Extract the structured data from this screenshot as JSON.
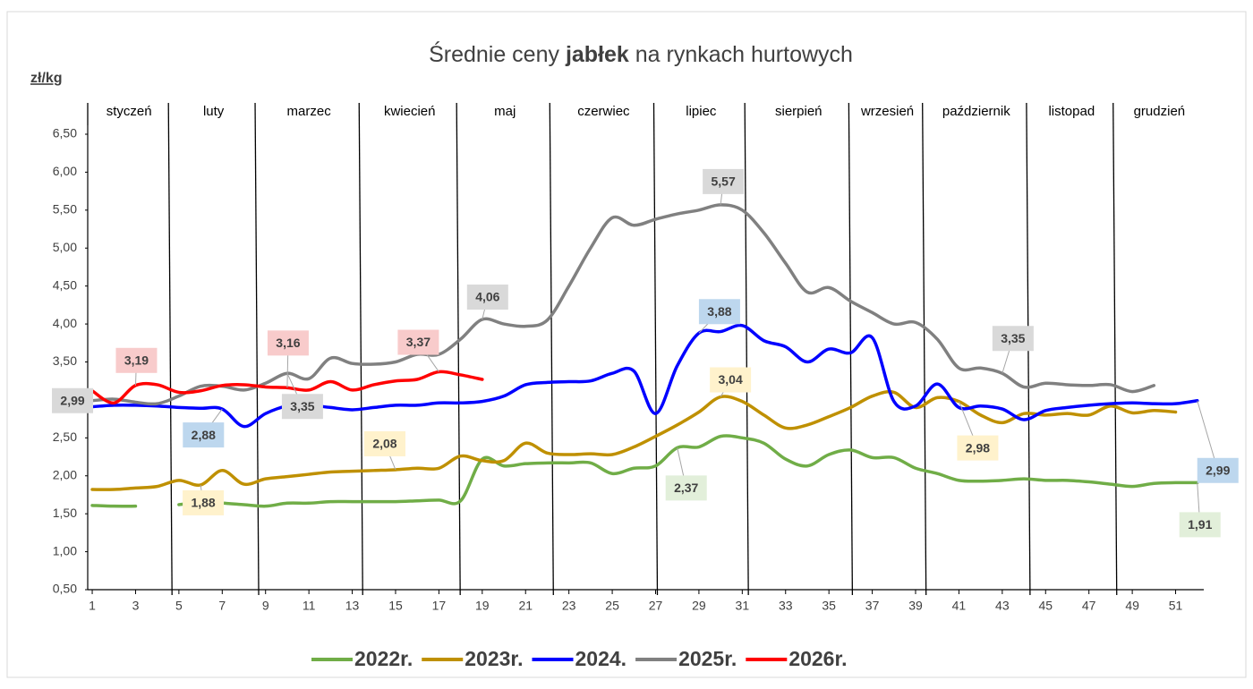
{
  "chart_data": {
    "type": "line",
    "title_parts": [
      "Średnie ceny ",
      "jabłek",
      " na rynkach hurtowych"
    ],
    "y_label": "zł/kg",
    "months": [
      "styczeń",
      "luty",
      "marzec",
      "kwiecień",
      "maj",
      "czerwiec",
      "lipiec",
      "sierpień",
      "wrzesień",
      "październik",
      "listopad",
      "grudzień"
    ],
    "month_bounds": [
      4.6,
      8.6,
      13.4,
      17.9,
      22.2,
      27.0,
      31.2,
      36.0,
      39.4,
      44.2,
      48.2
    ],
    "xlim": [
      0.8,
      52.3
    ],
    "xticks": [
      1,
      3,
      5,
      7,
      9,
      11,
      13,
      15,
      17,
      19,
      21,
      23,
      25,
      27,
      29,
      31,
      33,
      35,
      37,
      39,
      41,
      43,
      45,
      47,
      49,
      51
    ],
    "ylim": [
      0.5,
      6.5
    ],
    "yticks": [
      {
        "value": 0.5,
        "label": "0,50"
      },
      {
        "value": 1.0,
        "label": "1,00"
      },
      {
        "value": 1.5,
        "label": "1,50"
      },
      {
        "value": 2.0,
        "label": "2,00"
      },
      {
        "value": 2.5,
        "label": "2,50"
      },
      {
        "value": 3.0,
        "label": "3,00"
      },
      {
        "value": 3.5,
        "label": "3,50"
      },
      {
        "value": 4.0,
        "label": "4,00"
      },
      {
        "value": 4.5,
        "label": "4,50"
      },
      {
        "value": 5.0,
        "label": "5,00"
      },
      {
        "value": 5.5,
        "label": "5,50"
      },
      {
        "value": 6.0,
        "label": "6,00"
      },
      {
        "value": 6.5,
        "label": "6,50"
      }
    ],
    "x": [
      1,
      2,
      3,
      4,
      5,
      6,
      7,
      8,
      9,
      10,
      11,
      12,
      13,
      14,
      15,
      16,
      17,
      18,
      19,
      20,
      21,
      22,
      23,
      24,
      25,
      26,
      27,
      28,
      29,
      30,
      31,
      32,
      33,
      34,
      35,
      36,
      37,
      38,
      39,
      40,
      41,
      42,
      43,
      44,
      45,
      46,
      47,
      48,
      49,
      50,
      51,
      52
    ],
    "series": [
      {
        "name": "2022r.",
        "color": "#70ad47",
        "values": [
          1.61,
          1.6,
          1.6,
          null,
          1.62,
          1.65,
          1.64,
          1.62,
          1.6,
          1.64,
          1.64,
          1.66,
          1.66,
          1.66,
          1.66,
          1.67,
          1.68,
          1.67,
          2.22,
          2.13,
          2.16,
          2.17,
          2.17,
          2.17,
          2.03,
          2.1,
          2.13,
          2.37,
          2.38,
          2.52,
          2.5,
          2.43,
          2.22,
          2.13,
          2.28,
          2.34,
          2.24,
          2.24,
          2.1,
          2.03,
          1.94,
          1.93,
          1.94,
          1.96,
          1.94,
          1.94,
          1.92,
          1.89,
          1.86,
          1.9,
          1.91,
          1.91
        ]
      },
      {
        "name": "2023r.",
        "color": "#bf9000",
        "values": [
          1.82,
          1.82,
          1.84,
          1.86,
          1.94,
          1.88,
          2.07,
          1.89,
          1.96,
          1.99,
          2.02,
          2.05,
          2.06,
          2.07,
          2.08,
          2.1,
          2.1,
          2.26,
          2.2,
          2.2,
          2.43,
          2.3,
          2.28,
          2.29,
          2.28,
          2.38,
          2.52,
          2.67,
          2.84,
          3.04,
          2.98,
          2.8,
          2.63,
          2.67,
          2.78,
          2.9,
          3.05,
          3.1,
          2.9,
          3.03,
          2.98,
          2.8,
          2.7,
          2.82,
          2.8,
          2.82,
          2.8,
          2.92,
          2.83,
          2.86,
          2.84,
          null
        ]
      },
      {
        "name": "2024.",
        "color": "#0000ff",
        "values": [
          2.91,
          2.93,
          2.93,
          2.92,
          2.9,
          2.89,
          2.88,
          2.65,
          2.82,
          2.92,
          2.93,
          2.9,
          2.87,
          2.9,
          2.93,
          2.93,
          2.96,
          2.96,
          2.98,
          3.05,
          3.2,
          3.23,
          3.24,
          3.25,
          3.35,
          3.38,
          2.82,
          3.45,
          3.88,
          3.9,
          3.98,
          3.78,
          3.7,
          3.5,
          3.67,
          3.62,
          3.82,
          2.98,
          2.92,
          3.21,
          2.9,
          2.92,
          2.88,
          2.74,
          2.86,
          2.9,
          2.93,
          2.95,
          2.96,
          2.95,
          2.95,
          2.99
        ]
      },
      {
        "name": "2025r.",
        "color": "#808080",
        "values": [
          2.99,
          3.01,
          2.97,
          2.95,
          3.05,
          3.18,
          3.18,
          3.13,
          3.22,
          3.35,
          3.28,
          3.55,
          3.48,
          3.47,
          3.5,
          3.6,
          3.6,
          3.8,
          4.06,
          4.0,
          3.97,
          4.05,
          4.5,
          5.0,
          5.4,
          5.3,
          5.38,
          5.45,
          5.5,
          5.57,
          5.5,
          5.2,
          4.8,
          4.42,
          4.48,
          4.3,
          4.15,
          4.0,
          4.02,
          3.8,
          3.42,
          3.42,
          3.35,
          3.17,
          3.22,
          3.2,
          3.19,
          3.2,
          3.11,
          3.19,
          null,
          null
        ]
      },
      {
        "name": "2026r.",
        "color": "#ff0000",
        "values": [
          3.12,
          2.96,
          3.19,
          3.2,
          3.1,
          3.12,
          3.19,
          3.2,
          3.17,
          3.16,
          3.13,
          3.24,
          3.13,
          3.2,
          3.25,
          3.27,
          3.37,
          3.33,
          3.27,
          null,
          null,
          null,
          null,
          null,
          null,
          null,
          null,
          null,
          null,
          null,
          null,
          null,
          null,
          null,
          null,
          null,
          null,
          null,
          null,
          null,
          null,
          null,
          null,
          null,
          null,
          null,
          null,
          null,
          null,
          null,
          null,
          null
        ]
      }
    ],
    "annotations": [
      {
        "label": "2,99",
        "x": 1,
        "y": 2.99,
        "color": "#d9d9d9"
      },
      {
        "label": "3,19",
        "x": 3,
        "y": 3.19,
        "color": "#f8cbcb"
      },
      {
        "label": "2,88",
        "x": 7,
        "y": 2.88,
        "color": "#bdd7ee"
      },
      {
        "label": "3,16",
        "x": 10,
        "y": 3.16,
        "color": "#f8cbcb"
      },
      {
        "label": "3,35",
        "x": 10,
        "y": 3.35,
        "color": "#d9d9d9"
      },
      {
        "label": "3,37",
        "x": 17,
        "y": 3.37,
        "color": "#f8cbcb"
      },
      {
        "label": "4,06",
        "x": 19,
        "y": 4.06,
        "color": "#d9d9d9"
      },
      {
        "label": "2,08",
        "x": 15,
        "y": 2.08,
        "color": "#fff2cc"
      },
      {
        "label": "1,88",
        "x": 6,
        "y": 1.88,
        "color": "#fff2cc"
      },
      {
        "label": "5,57",
        "x": 30,
        "y": 5.57,
        "color": "#d9d9d9"
      },
      {
        "label": "3,88",
        "x": 29,
        "y": 3.88,
        "color": "#bdd7ee"
      },
      {
        "label": "3,04",
        "x": 30,
        "y": 3.04,
        "color": "#fff2cc"
      },
      {
        "label": "2,37",
        "x": 28,
        "y": 2.37,
        "color": "#e2efda"
      },
      {
        "label": "3,35",
        "x": 43,
        "y": 3.35,
        "color": "#d9d9d9"
      },
      {
        "label": "2,98",
        "x": 41,
        "y": 2.98,
        "color": "#fff2cc"
      },
      {
        "label": "2,99",
        "x": 52,
        "y": 2.99,
        "color": "#bdd7ee"
      },
      {
        "label": "1,91",
        "x": 52,
        "y": 1.91,
        "color": "#e2efda"
      }
    ]
  }
}
